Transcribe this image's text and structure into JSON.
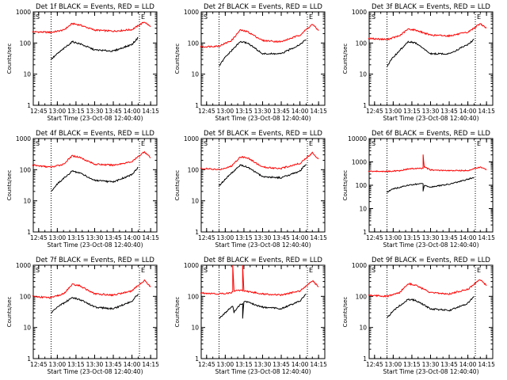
{
  "chart_data": [
    {
      "type": "line",
      "title": "Det 1f BLACK = Events, RED = LLD",
      "xlabel": "Start Time (23-Oct-08 12:40:40)",
      "ylabel": "Counts/sec",
      "x_ticks": [
        "12:45",
        "13:00",
        "13:15",
        "13:30",
        "13:45",
        "14:00",
        "14:15"
      ],
      "y_ticks": [
        "1",
        "10",
        "100",
        "1000"
      ],
      "ylim": [
        1,
        1000
      ],
      "yscale": "log",
      "markers": [
        "S",
        "E"
      ],
      "marker_times": [
        "12:55",
        "14:06"
      ],
      "series": [
        {
          "color": "#ff0000",
          "time": [
            "12:40",
            "12:55",
            "13:05",
            "13:12",
            "13:18",
            "13:30",
            "13:45",
            "14:00",
            "14:10",
            "14:15"
          ],
          "values": [
            230,
            220,
            260,
            420,
            380,
            260,
            240,
            270,
            480,
            330
          ]
        },
        {
          "color": "#000000",
          "time": [
            "12:55",
            "13:00",
            "13:12",
            "13:18",
            "13:30",
            "13:45",
            "14:00",
            "14:05"
          ],
          "values": [
            30,
            45,
            110,
            95,
            60,
            55,
            90,
            150
          ]
        }
      ]
    },
    {
      "type": "line",
      "title": "Det 2f BLACK = Events, RED = LLD",
      "xlabel": "Start Time (23-Oct-08 12:40:40)",
      "ylabel": "Counts/sec",
      "x_ticks": [
        "12:45",
        "13:00",
        "13:15",
        "13:30",
        "13:45",
        "14:00",
        "14:15"
      ],
      "y_ticks": [
        "1",
        "10",
        "100",
        "1000"
      ],
      "ylim": [
        1,
        1000
      ],
      "yscale": "log",
      "markers": [
        "S",
        "E"
      ],
      "marker_times": [
        "12:55",
        "14:06"
      ],
      "series": [
        {
          "color": "#ff0000",
          "time": [
            "12:40",
            "12:55",
            "13:05",
            "13:12",
            "13:18",
            "13:30",
            "13:45",
            "14:00",
            "14:10",
            "14:15"
          ],
          "values": [
            75,
            80,
            120,
            260,
            230,
            120,
            110,
            180,
            400,
            250
          ]
        },
        {
          "color": "#000000",
          "time": [
            "12:55",
            "13:00",
            "13:12",
            "13:18",
            "13:30",
            "13:45",
            "14:00",
            "14:05"
          ],
          "values": [
            18,
            35,
            110,
            100,
            45,
            45,
            90,
            130
          ]
        }
      ]
    },
    {
      "type": "line",
      "title": "Det 3f BLACK = Events, RED = LLD",
      "xlabel": "Start Time (23-Oct-08 12:40:40)",
      "ylabel": "Counts/sec",
      "x_ticks": [
        "12:45",
        "13:00",
        "13:15",
        "13:30",
        "13:45",
        "14:00",
        "14:15"
      ],
      "y_ticks": [
        "1",
        "10",
        "100",
        "1000"
      ],
      "ylim": [
        1,
        1000
      ],
      "yscale": "log",
      "markers": [
        "S",
        "E"
      ],
      "marker_times": [
        "12:55",
        "14:06"
      ],
      "series": [
        {
          "color": "#ff0000",
          "time": [
            "12:40",
            "12:55",
            "13:05",
            "13:12",
            "13:18",
            "13:30",
            "13:45",
            "14:00",
            "14:10",
            "14:15"
          ],
          "values": [
            140,
            130,
            170,
            280,
            260,
            180,
            170,
            220,
            420,
            300
          ]
        },
        {
          "color": "#000000",
          "time": [
            "12:55",
            "13:00",
            "13:12",
            "13:18",
            "13:30",
            "13:45",
            "14:00",
            "14:05"
          ],
          "values": [
            18,
            35,
            110,
            100,
            45,
            45,
            90,
            130
          ]
        }
      ]
    },
    {
      "type": "line",
      "title": "Det 4f BLACK = Events, RED = LLD",
      "xlabel": "Start Time (23-Oct-08 12:40:40)",
      "ylabel": "Counts/sec",
      "x_ticks": [
        "12:45",
        "13:00",
        "13:15",
        "13:30",
        "13:45",
        "14:00",
        "14:15"
      ],
      "y_ticks": [
        "1",
        "10",
        "100",
        "1000"
      ],
      "ylim": [
        1,
        1000
      ],
      "yscale": "log",
      "markers": [
        "S",
        "E"
      ],
      "marker_times": [
        "12:55",
        "14:06"
      ],
      "series": [
        {
          "color": "#ff0000",
          "time": [
            "12:40",
            "12:55",
            "13:05",
            "13:12",
            "13:18",
            "13:30",
            "13:45",
            "14:00",
            "14:10",
            "14:15"
          ],
          "values": [
            140,
            120,
            150,
            280,
            250,
            150,
            140,
            180,
            380,
            240
          ]
        },
        {
          "color": "#000000",
          "time": [
            "12:55",
            "13:00",
            "13:12",
            "13:18",
            "13:30",
            "13:45",
            "14:00",
            "14:05"
          ],
          "values": [
            20,
            35,
            90,
            80,
            45,
            40,
            70,
            120
          ]
        }
      ]
    },
    {
      "type": "line",
      "title": "Det 5f BLACK = Events, RED = LLD",
      "xlabel": "Start Time (23-Oct-08 12:40:40)",
      "ylabel": "Counts/sec",
      "x_ticks": [
        "12:45",
        "13:00",
        "13:15",
        "13:30",
        "13:45",
        "14:00",
        "14:15"
      ],
      "y_ticks": [
        "1",
        "10",
        "100",
        "1000"
      ],
      "ylim": [
        1,
        1000
      ],
      "yscale": "log",
      "markers": [
        "S",
        "E"
      ],
      "marker_times": [
        "12:55",
        "14:06"
      ],
      "series": [
        {
          "color": "#ff0000",
          "time": [
            "12:40",
            "12:55",
            "13:05",
            "13:12",
            "13:18",
            "13:30",
            "13:45",
            "14:00",
            "14:10",
            "14:15"
          ],
          "values": [
            110,
            100,
            130,
            260,
            240,
            120,
            110,
            160,
            350,
            220
          ]
        },
        {
          "color": "#000000",
          "time": [
            "12:55",
            "13:00",
            "13:12",
            "13:18",
            "13:30",
            "13:45",
            "14:00",
            "14:05"
          ],
          "values": [
            30,
            50,
            140,
            120,
            60,
            55,
            90,
            150
          ]
        }
      ]
    },
    {
      "type": "line",
      "title": "Det 6f BLACK = Events, RED = LLD",
      "xlabel": "Start Time (23-Oct-08 12:40:40)",
      "ylabel": "Counts/sec",
      "x_ticks": [
        "12:45",
        "13:00",
        "13:15",
        "13:30",
        "13:45",
        "14:00",
        "14:15"
      ],
      "y_ticks": [
        "1",
        "10",
        "100",
        "1000",
        "10000"
      ],
      "ylim": [
        1,
        10000
      ],
      "yscale": "log",
      "markers": [
        "S",
        "E"
      ],
      "marker_times": [
        "12:55",
        "14:06"
      ],
      "series": [
        {
          "color": "#ff0000",
          "time": [
            "12:40",
            "12:55",
            "13:05",
            "13:12",
            "13:18",
            "13:24",
            "13:24",
            "13:25",
            "13:30",
            "13:45",
            "14:00",
            "14:10",
            "14:15"
          ],
          "values": [
            400,
            390,
            420,
            500,
            520,
            530,
            2000,
            600,
            450,
            420,
            430,
            600,
            450
          ]
        },
        {
          "color": "#000000",
          "time": [
            "12:55",
            "13:00",
            "13:12",
            "13:18",
            "13:24",
            "13:24",
            "13:25",
            "13:30",
            "13:45",
            "14:00",
            "14:05"
          ],
          "values": [
            50,
            70,
            100,
            110,
            115,
            55,
            100,
            85,
            110,
            180,
            220
          ]
        }
      ]
    },
    {
      "type": "line",
      "title": "Det 7f BLACK = Events, RED = LLD",
      "xlabel": "Start Time (23-Oct-08 12:40:40)",
      "ylabel": "Counts/sec",
      "x_ticks": [
        "12:45",
        "13:00",
        "13:15",
        "13:30",
        "13:45",
        "14:00",
        "14:15"
      ],
      "y_ticks": [
        "1",
        "10",
        "100",
        "1000"
      ],
      "ylim": [
        1,
        1000
      ],
      "yscale": "log",
      "markers": [
        "S",
        "E"
      ],
      "marker_times": [
        "12:55",
        "14:06"
      ],
      "series": [
        {
          "color": "#ff0000",
          "time": [
            "12:40",
            "12:55",
            "13:05",
            "13:12",
            "13:18",
            "13:30",
            "13:45",
            "14:00",
            "14:10",
            "14:15"
          ],
          "values": [
            100,
            90,
            120,
            240,
            220,
            120,
            110,
            150,
            330,
            200
          ]
        },
        {
          "color": "#000000",
          "time": [
            "12:55",
            "13:00",
            "13:12",
            "13:18",
            "13:30",
            "13:45",
            "14:00",
            "14:05"
          ],
          "values": [
            30,
            45,
            90,
            80,
            45,
            40,
            70,
            120
          ]
        }
      ]
    },
    {
      "type": "line",
      "title": "Det 8f BLACK = Events, RED = LLD",
      "xlabel": "Start Time (23-Oct-08 12:40:40)",
      "ylabel": "Counts/sec",
      "x_ticks": [
        "12:45",
        "13:00",
        "13:15",
        "13:30",
        "13:45",
        "14:00",
        "14:15"
      ],
      "y_ticks": [
        "1",
        "10",
        "100",
        "1000"
      ],
      "ylim": [
        1,
        1000
      ],
      "yscale": "log",
      "markers": [
        "S",
        "E"
      ],
      "marker_times": [
        "12:55",
        "14:06"
      ],
      "series": [
        {
          "color": "#ff0000",
          "time": [
            "12:40",
            "12:55",
            "13:05",
            "13:06",
            "13:06",
            "13:07",
            "13:13",
            "13:14",
            "13:14",
            "13:15",
            "13:30",
            "13:45",
            "14:00",
            "14:10",
            "14:15"
          ],
          "values": [
            130,
            120,
            130,
            140,
            1000,
            150,
            160,
            150,
            1000,
            150,
            120,
            110,
            150,
            320,
            200
          ]
        },
        {
          "color": "#000000",
          "time": [
            "12:55",
            "13:00",
            "13:06",
            "13:07",
            "13:12",
            "13:14",
            "13:14",
            "13:15",
            "13:30",
            "13:45",
            "14:00",
            "14:05"
          ],
          "values": [
            20,
            30,
            50,
            30,
            55,
            60,
            20,
            70,
            45,
            40,
            70,
            120
          ]
        }
      ]
    },
    {
      "type": "line",
      "title": "Det 9f BLACK = Events, RED = LLD",
      "xlabel": "Start Time (23-Oct-08 12:40:40)",
      "ylabel": "Counts/sec",
      "x_ticks": [
        "12:45",
        "13:00",
        "13:15",
        "13:30",
        "13:45",
        "14:00",
        "14:15"
      ],
      "y_ticks": [
        "1",
        "10",
        "100",
        "1000"
      ],
      "ylim": [
        1,
        1000
      ],
      "yscale": "log",
      "markers": [
        "S",
        "E"
      ],
      "marker_times": [
        "12:55",
        "14:06"
      ],
      "series": [
        {
          "color": "#ff0000",
          "time": [
            "12:40",
            "12:55",
            "13:05",
            "13:12",
            "13:18",
            "13:30",
            "13:45",
            "14:00",
            "14:10",
            "14:15"
          ],
          "values": [
            110,
            100,
            130,
            260,
            230,
            130,
            120,
            170,
            350,
            220
          ]
        },
        {
          "color": "#000000",
          "time": [
            "12:55",
            "13:00",
            "13:12",
            "13:18",
            "13:30",
            "13:45",
            "14:00",
            "14:05"
          ],
          "values": [
            20,
            35,
            80,
            75,
            40,
            35,
            60,
            100
          ]
        }
      ]
    }
  ]
}
